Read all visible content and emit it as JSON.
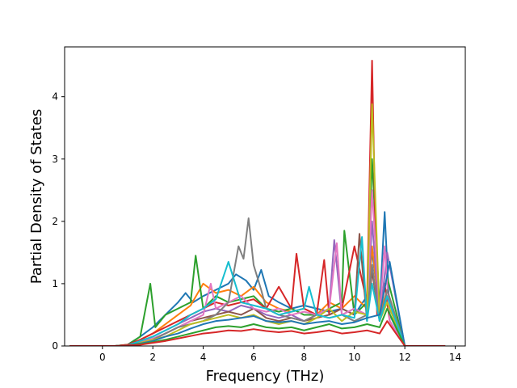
{
  "chart_data": {
    "type": "line",
    "title": "",
    "xlabel": "Frequency (THz)",
    "ylabel": "Partial Density of States",
    "xlim": [
      -1.5,
      14.4
    ],
    "ylim": [
      0,
      4.8
    ],
    "xticks": [
      0,
      2,
      4,
      6,
      8,
      10,
      12,
      14
    ],
    "yticks": [
      0,
      1,
      2,
      3,
      4
    ],
    "grid": false,
    "legend": "none",
    "series": [
      {
        "color": "#1f77b4",
        "x": [
          -1.3,
          0.5,
          1.0,
          1.5,
          2.0,
          2.5,
          3.0,
          3.3,
          3.6,
          4.0,
          4.5,
          5.0,
          5.3,
          5.7,
          6.0,
          6.3,
          6.6,
          7.0,
          7.5,
          8.0,
          8.5,
          9.0,
          9.5,
          10.0,
          10.5,
          10.7,
          11.0,
          11.2,
          11.4,
          12.0,
          13.6
        ],
        "y": [
          0,
          0,
          0.02,
          0.15,
          0.3,
          0.5,
          0.7,
          0.85,
          0.7,
          0.8,
          0.9,
          1.0,
          1.15,
          1.05,
          0.9,
          1.22,
          0.8,
          0.7,
          0.6,
          0.65,
          0.6,
          0.55,
          0.6,
          0.5,
          0.8,
          1.5,
          0.6,
          2.15,
          0.5,
          0,
          0
        ]
      },
      {
        "color": "#ff7f0e",
        "x": [
          -1.3,
          0.5,
          1.0,
          1.5,
          2.0,
          2.5,
          3.0,
          3.5,
          4.0,
          4.5,
          5.0,
          5.5,
          6.0,
          6.5,
          7.0,
          7.5,
          8.0,
          8.5,
          9.0,
          9.5,
          10.0,
          10.5,
          10.7,
          11.0,
          11.3,
          12.0,
          13.6
        ],
        "y": [
          0,
          0,
          0.02,
          0.1,
          0.2,
          0.35,
          0.5,
          0.65,
          1.0,
          0.85,
          0.9,
          0.8,
          0.95,
          0.7,
          0.6,
          0.55,
          0.6,
          0.5,
          0.7,
          0.6,
          0.8,
          0.6,
          1.6,
          0.5,
          0.9,
          0,
          0
        ]
      },
      {
        "color": "#2ca02c",
        "x": [
          -1.3,
          0.5,
          1.0,
          1.5,
          1.9,
          2.1,
          2.5,
          3.0,
          3.5,
          3.7,
          4.0,
          4.5,
          5.0,
          5.5,
          6.0,
          6.5,
          7.0,
          7.5,
          8.0,
          8.5,
          9.0,
          9.5,
          9.6,
          10.0,
          10.5,
          10.7,
          11.0,
          11.3,
          12.0,
          13.6
        ],
        "y": [
          0,
          0,
          0.02,
          0.15,
          1.0,
          0.3,
          0.5,
          0.6,
          0.7,
          1.45,
          0.6,
          0.8,
          0.7,
          0.75,
          0.8,
          0.6,
          0.55,
          0.6,
          0.5,
          0.5,
          0.6,
          0.7,
          1.85,
          0.5,
          0.7,
          3.0,
          0.6,
          1.1,
          0,
          0
        ]
      },
      {
        "color": "#d62728",
        "x": [
          -1.3,
          0.5,
          1.0,
          1.5,
          2.0,
          2.5,
          3.0,
          3.5,
          4.0,
          4.5,
          5.0,
          5.5,
          6.0,
          6.5,
          7.0,
          7.5,
          7.7,
          8.0,
          8.5,
          8.8,
          9.0,
          9.5,
          10.0,
          10.5,
          10.7,
          10.9,
          11.2,
          11.4,
          12.0,
          13.6
        ],
        "y": [
          0,
          0,
          0.02,
          0.1,
          0.2,
          0.3,
          0.4,
          0.5,
          0.6,
          0.7,
          0.65,
          0.7,
          0.75,
          0.6,
          0.95,
          0.6,
          1.48,
          0.6,
          0.5,
          1.38,
          0.5,
          0.6,
          1.6,
          0.7,
          4.58,
          0.5,
          1.0,
          0.4,
          0,
          0
        ]
      },
      {
        "color": "#9467bd",
        "x": [
          -1.3,
          0.5,
          1.0,
          1.5,
          2.0,
          2.5,
          3.0,
          3.5,
          4.0,
          4.5,
          5.0,
          5.5,
          6.0,
          6.5,
          7.0,
          7.5,
          8.0,
          8.5,
          9.0,
          9.2,
          9.5,
          10.0,
          10.5,
          10.7,
          11.0,
          11.3,
          12.0,
          13.6
        ],
        "y": [
          0,
          0,
          0.01,
          0.08,
          0.15,
          0.25,
          0.35,
          0.45,
          0.55,
          0.6,
          0.55,
          0.65,
          0.6,
          0.5,
          0.45,
          0.5,
          0.4,
          0.5,
          0.6,
          1.7,
          0.5,
          0.6,
          0.5,
          2.0,
          0.4,
          1.5,
          0,
          0
        ]
      },
      {
        "color": "#8c564b",
        "x": [
          -1.3,
          0.5,
          1.0,
          1.5,
          2.0,
          2.5,
          3.0,
          3.5,
          4.0,
          4.5,
          5.0,
          5.5,
          6.0,
          6.5,
          7.0,
          7.5,
          8.0,
          8.5,
          9.0,
          9.5,
          10.0,
          10.2,
          10.5,
          10.7,
          11.0,
          11.3,
          12.0,
          13.6
        ],
        "y": [
          0,
          0,
          0.01,
          0.05,
          0.1,
          0.2,
          0.3,
          0.4,
          0.45,
          0.5,
          0.55,
          0.5,
          0.6,
          0.45,
          0.4,
          0.45,
          0.4,
          0.45,
          0.5,
          0.6,
          0.5,
          1.8,
          0.4,
          1.2,
          0.4,
          0.8,
          0,
          0
        ]
      },
      {
        "color": "#e377c2",
        "x": [
          -1.3,
          0.5,
          1.0,
          1.5,
          2.0,
          2.5,
          3.0,
          3.5,
          4.0,
          4.3,
          4.5,
          5.0,
          5.5,
          6.0,
          6.5,
          7.0,
          7.5,
          8.0,
          8.5,
          9.0,
          9.3,
          9.5,
          10.0,
          10.5,
          10.7,
          11.0,
          11.2,
          11.4,
          12.0,
          13.6
        ],
        "y": [
          0,
          0,
          0.01,
          0.06,
          0.12,
          0.2,
          0.3,
          0.4,
          0.5,
          1.0,
          0.6,
          0.7,
          0.8,
          0.6,
          0.55,
          0.6,
          0.5,
          0.55,
          0.5,
          0.6,
          1.65,
          0.5,
          0.6,
          0.5,
          2.5,
          0.5,
          1.6,
          0.4,
          0,
          0
        ]
      },
      {
        "color": "#7f7f7f",
        "x": [
          -1.3,
          0.5,
          1.0,
          1.5,
          2.0,
          2.5,
          3.0,
          3.5,
          4.0,
          4.5,
          5.0,
          5.4,
          5.6,
          5.8,
          6.0,
          6.3,
          6.5,
          7.0,
          7.5,
          8.0,
          8.5,
          9.0,
          9.5,
          10.0,
          10.5,
          10.7,
          11.0,
          11.3,
          12.0,
          13.6
        ],
        "y": [
          0,
          0,
          0.01,
          0.05,
          0.1,
          0.2,
          0.3,
          0.35,
          0.4,
          0.5,
          0.7,
          1.6,
          1.4,
          2.05,
          1.3,
          0.9,
          0.6,
          0.5,
          0.45,
          0.4,
          0.5,
          0.45,
          0.5,
          0.4,
          0.5,
          1.3,
          0.4,
          0.9,
          0,
          0
        ]
      },
      {
        "color": "#bcbd22",
        "x": [
          -1.3,
          0.5,
          1.0,
          1.5,
          2.0,
          2.5,
          3.0,
          3.5,
          4.0,
          4.5,
          5.0,
          5.5,
          6.0,
          6.5,
          7.0,
          7.5,
          8.0,
          8.5,
          9.0,
          9.5,
          10.0,
          10.5,
          10.7,
          11.0,
          11.3,
          12.0,
          13.6
        ],
        "y": [
          0,
          0,
          0.01,
          0.05,
          0.1,
          0.15,
          0.25,
          0.35,
          0.4,
          0.45,
          0.5,
          0.45,
          0.5,
          0.4,
          0.35,
          0.4,
          0.35,
          0.45,
          0.6,
          0.4,
          0.55,
          0.5,
          3.88,
          0.4,
          0.7,
          0,
          0
        ]
      },
      {
        "color": "#17becf",
        "x": [
          -1.3,
          0.5,
          1.0,
          1.5,
          2.0,
          2.5,
          3.0,
          3.5,
          4.0,
          4.5,
          5.0,
          5.5,
          6.0,
          6.5,
          7.0,
          7.5,
          8.0,
          8.2,
          8.5,
          9.0,
          9.5,
          10.0,
          10.3,
          10.5,
          10.7,
          11.0,
          11.3,
          12.0,
          13.6
        ],
        "y": [
          0,
          0,
          0.01,
          0.08,
          0.15,
          0.25,
          0.35,
          0.5,
          0.6,
          0.75,
          1.35,
          0.7,
          0.65,
          0.6,
          0.5,
          0.55,
          0.6,
          0.95,
          0.5,
          0.45,
          0.5,
          0.45,
          1.75,
          0.4,
          1.0,
          0.4,
          0.8,
          0,
          0
        ]
      },
      {
        "color": "#1f77b4",
        "x": [
          -1.3,
          0.5,
          1.0,
          1.5,
          2.0,
          2.5,
          3.0,
          3.5,
          4.0,
          4.5,
          5.0,
          5.5,
          6.0,
          6.5,
          7.0,
          7.5,
          8.0,
          8.5,
          9.0,
          9.5,
          10.0,
          10.5,
          11.0,
          11.4,
          12.0,
          13.6
        ],
        "y": [
          0,
          0,
          0.01,
          0.04,
          0.08,
          0.15,
          0.2,
          0.28,
          0.35,
          0.4,
          0.42,
          0.45,
          0.48,
          0.4,
          0.38,
          0.4,
          0.35,
          0.38,
          0.4,
          0.35,
          0.38,
          0.45,
          0.5,
          1.35,
          0,
          0
        ]
      },
      {
        "color": "#2ca02c",
        "x": [
          -1.3,
          0.5,
          1.0,
          1.5,
          2.0,
          2.5,
          3.0,
          3.5,
          4.0,
          4.5,
          5.0,
          5.5,
          6.0,
          6.5,
          7.0,
          7.5,
          8.0,
          8.5,
          9.0,
          9.5,
          10.0,
          10.5,
          11.0,
          11.3,
          12.0,
          13.6
        ],
        "y": [
          0,
          0,
          0.01,
          0.03,
          0.06,
          0.1,
          0.15,
          0.2,
          0.25,
          0.3,
          0.32,
          0.3,
          0.35,
          0.3,
          0.28,
          0.3,
          0.25,
          0.3,
          0.35,
          0.28,
          0.3,
          0.35,
          0.3,
          0.6,
          0,
          0
        ]
      },
      {
        "color": "#d62728",
        "x": [
          -1.3,
          0.5,
          1.0,
          1.5,
          2.0,
          2.5,
          3.0,
          3.5,
          4.0,
          4.5,
          5.0,
          5.5,
          6.0,
          6.5,
          7.0,
          7.5,
          8.0,
          8.5,
          9.0,
          9.5,
          10.0,
          10.5,
          11.0,
          11.3,
          12.0,
          13.6
        ],
        "y": [
          0,
          0,
          0.01,
          0.02,
          0.05,
          0.08,
          0.12,
          0.16,
          0.2,
          0.22,
          0.25,
          0.24,
          0.27,
          0.24,
          0.22,
          0.24,
          0.2,
          0.22,
          0.25,
          0.2,
          0.22,
          0.25,
          0.2,
          0.4,
          0,
          0
        ]
      }
    ]
  }
}
